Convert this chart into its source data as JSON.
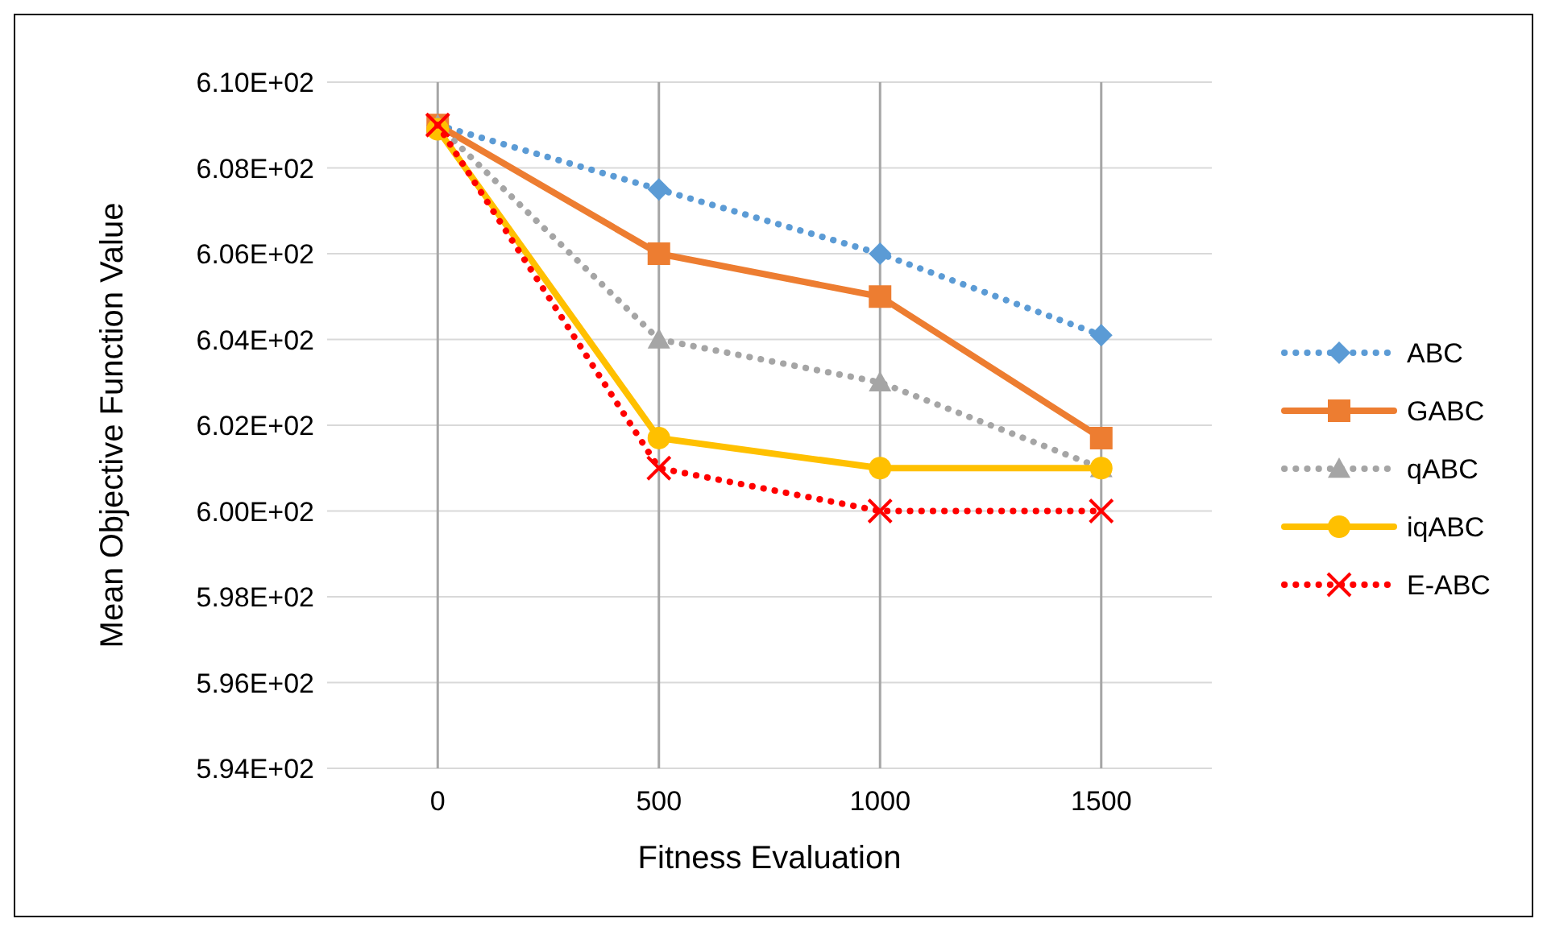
{
  "chart_data": {
    "type": "line",
    "xlabel": "Fitness Evaluation",
    "ylabel": "Mean Objective Function Value",
    "categories": [
      "0",
      "500",
      "1000",
      "1500"
    ],
    "ylim": [
      594,
      610
    ],
    "yticks": [
      {
        "value": 594,
        "label": "5.94E+02"
      },
      {
        "value": 596,
        "label": "5.96E+02"
      },
      {
        "value": 598,
        "label": "5.98E+02"
      },
      {
        "value": 600,
        "label": "6.00E+02"
      },
      {
        "value": 602,
        "label": "6.02E+02"
      },
      {
        "value": 604,
        "label": "6.04E+02"
      },
      {
        "value": 606,
        "label": "6.06E+02"
      },
      {
        "value": 608,
        "label": "6.08E+02"
      },
      {
        "value": 610,
        "label": "6.10E+02"
      }
    ],
    "grid": true,
    "legend": "right",
    "series": [
      {
        "name": "ABC",
        "color": "#5b9bd5",
        "marker": "diamond",
        "line_style": "dotted",
        "values": [
          609,
          607.5,
          606,
          604.1
        ]
      },
      {
        "name": "GABC",
        "color": "#ed7d31",
        "marker": "square",
        "line_style": "solid",
        "values": [
          609,
          606,
          605,
          601.7
        ]
      },
      {
        "name": "qABC",
        "color": "#a5a5a5",
        "marker": "triangle",
        "line_style": "dotted",
        "values": [
          609,
          604,
          603,
          601
        ]
      },
      {
        "name": "iqABC",
        "color": "#ffc000",
        "marker": "circle",
        "line_style": "solid",
        "values": [
          608.9,
          601.7,
          601,
          601
        ]
      },
      {
        "name": "E-ABC",
        "color": "#ff0000",
        "marker": "cross",
        "line_style": "dotted",
        "values": [
          609,
          601,
          600,
          600
        ]
      }
    ]
  }
}
